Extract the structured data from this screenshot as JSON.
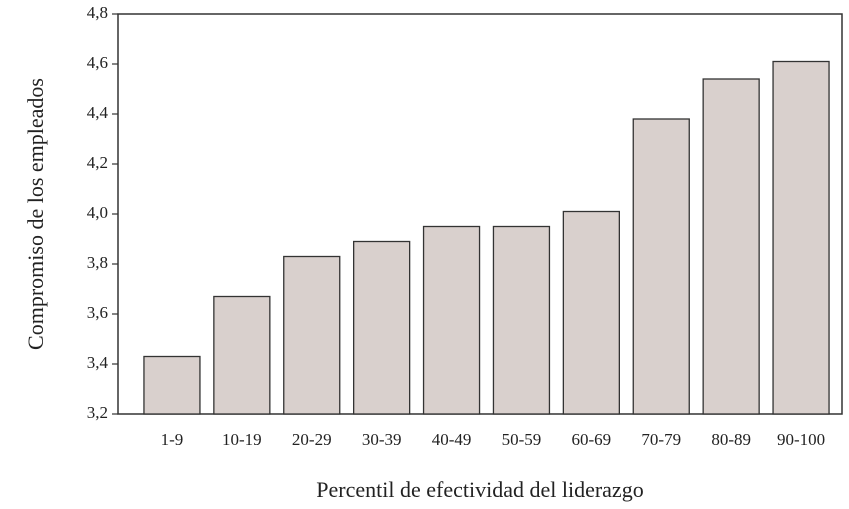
{
  "chart_data": {
    "type": "bar",
    "xlabel": "Percentil de efectividad del liderazgo",
    "ylabel": "Compromiso de los empleados",
    "categories": [
      "1-9",
      "10-19",
      "20-29",
      "30-39",
      "40-49",
      "50-59",
      "60-69",
      "70-79",
      "80-89",
      "90-100"
    ],
    "values": [
      3.43,
      3.67,
      3.83,
      3.89,
      3.95,
      3.95,
      4.01,
      4.38,
      4.54,
      4.61
    ],
    "color": "#d9d0cd",
    "ylim": [
      3.2,
      4.8
    ],
    "yticks": [
      {
        "value": 3.2,
        "label": "3,2"
      },
      {
        "value": 3.4,
        "label": "3,4"
      },
      {
        "value": 3.6,
        "label": "3,6"
      },
      {
        "value": 3.8,
        "label": "3,8"
      },
      {
        "value": 4.0,
        "label": "4,0"
      },
      {
        "value": 4.2,
        "label": "4,2"
      },
      {
        "value": 4.4,
        "label": "4,4"
      },
      {
        "value": 4.6,
        "label": "4,6"
      },
      {
        "value": 4.8,
        "label": "4,8"
      }
    ]
  }
}
